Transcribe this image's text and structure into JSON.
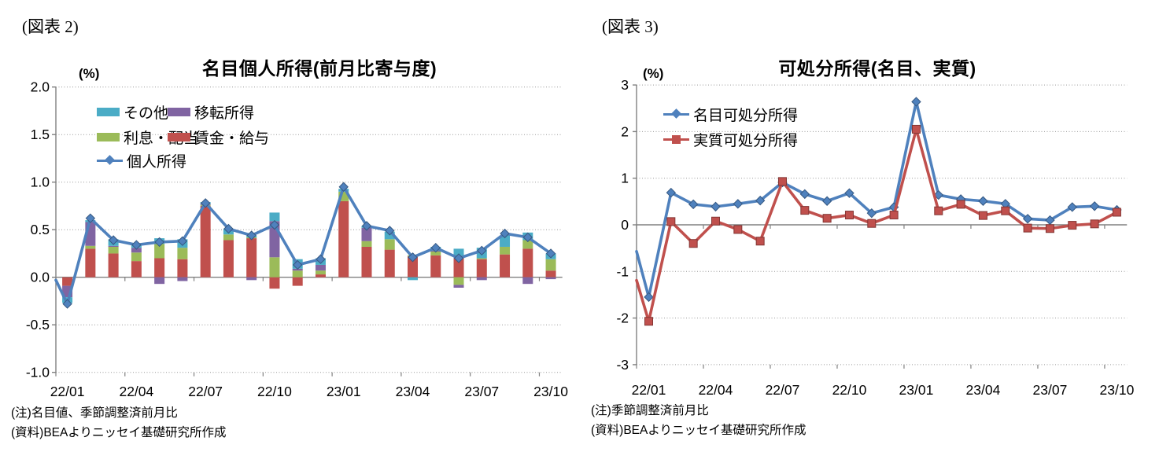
{
  "page_background": "#ffffff",
  "chart_data": [
    {
      "fig_label": "(図表 2)",
      "title": "名目個人所得(前月比寄与度)",
      "unit_label": "(%)",
      "type": "bar",
      "stacked": true,
      "grid": "horizontal-dotted",
      "legend_position": "inside-top-left",
      "xlabel": "",
      "ylabel": "%",
      "ylim": [
        -1.0,
        2.0
      ],
      "ytick_values": [
        2.0,
        1.5,
        1.0,
        0.5,
        0.0,
        -0.5,
        -1.0
      ],
      "ytick_labels": [
        "2.0",
        "1.5",
        "1.0",
        "0.5",
        "0.0",
        "-0.5",
        "-1.0"
      ],
      "categories": [
        "22/01",
        "22/02",
        "22/03",
        "22/04",
        "22/05",
        "22/06",
        "22/07",
        "22/08",
        "22/09",
        "22/10",
        "22/11",
        "22/12",
        "23/01",
        "23/02",
        "23/03",
        "23/04",
        "23/05",
        "23/06",
        "23/07",
        "23/08",
        "23/09",
        "23/10"
      ],
      "x_tick_labels": [
        "22/01",
        "22/04",
        "22/07",
        "22/10",
        "23/01",
        "23/04",
        "23/07",
        "23/10"
      ],
      "bar_series": [
        {
          "name": "賃金・給与",
          "color": "#C0504D",
          "values": [
            -0.09,
            0.3,
            0.25,
            0.17,
            0.2,
            0.19,
            0.75,
            0.39,
            0.41,
            -0.12,
            -0.09,
            0.03,
            0.8,
            0.32,
            0.29,
            0.22,
            0.23,
            0.2,
            0.19,
            0.24,
            0.3,
            0.07
          ]
        },
        {
          "name": "利息・配当",
          "color": "#9BBB59",
          "values": [
            0.0,
            0.03,
            0.07,
            0.09,
            0.15,
            0.12,
            0.01,
            0.06,
            0.01,
            0.21,
            0.07,
            0.04,
            0.1,
            0.06,
            0.11,
            0.01,
            0.04,
            -0.08,
            0.01,
            0.08,
            0.09,
            0.12
          ]
        },
        {
          "name": "移転所得",
          "color": "#8064A2",
          "values": [
            -0.12,
            0.25,
            0.01,
            0.05,
            -0.07,
            -0.04,
            0.01,
            0.0,
            -0.03,
            0.38,
            0.02,
            0.06,
            0.0,
            0.14,
            0.0,
            0.0,
            0.01,
            -0.03,
            -0.03,
            0.0,
            -0.07,
            -0.02
          ]
        },
        {
          "name": "その他",
          "color": "#4BACC6",
          "values": [
            -0.06,
            0.02,
            0.07,
            0.04,
            0.06,
            0.09,
            0.02,
            0.06,
            0.02,
            0.09,
            0.1,
            0.07,
            0.03,
            0.02,
            0.08,
            -0.03,
            0.04,
            0.1,
            0.11,
            0.12,
            0.08,
            0.06
          ]
        }
      ],
      "line_series": [
        {
          "name": "個人所得",
          "color": "#4F81BD",
          "marker_shape": "diamond",
          "left_edge_value": -0.03,
          "values": [
            -0.28,
            0.62,
            0.39,
            0.34,
            0.37,
            0.38,
            0.78,
            0.51,
            0.44,
            0.55,
            0.13,
            0.19,
            0.95,
            0.54,
            0.49,
            0.21,
            0.31,
            0.2,
            0.28,
            0.46,
            0.42,
            0.25
          ]
        }
      ],
      "legend": {
        "items": [
          {
            "label": "その他",
            "swatch": "rect",
            "color": "#4BACC6"
          },
          {
            "label": "移転所得",
            "swatch": "rect",
            "color": "#8064A2"
          },
          {
            "label": "利息・配当",
            "swatch": "rect",
            "color": "#9BBB59"
          },
          {
            "label": "賃金・給与",
            "swatch": "rect",
            "color": "#C0504D"
          },
          {
            "label": "個人所得",
            "swatch": "line-diamond",
            "color": "#4F81BD"
          }
        ]
      },
      "notes": [
        "(注)名目値、季節調整済前月比",
        "(資料)BEAよりニッセイ基礎研究所作成"
      ]
    },
    {
      "fig_label": "(図表 3)",
      "title": "可処分所得(名目、実質)",
      "unit_label": "(%)",
      "type": "line",
      "stacked": false,
      "grid": "horizontal-dotted",
      "legend_position": "inside-top-left",
      "xlabel": "",
      "ylabel": "%",
      "ylim": [
        -3,
        3
      ],
      "ytick_values": [
        3,
        2,
        1,
        0,
        -1,
        -2,
        -3
      ],
      "ytick_labels": [
        "3",
        "2",
        "1",
        "0",
        "-1",
        "-2",
        "-3"
      ],
      "categories": [
        "22/01",
        "22/02",
        "22/03",
        "22/04",
        "22/05",
        "22/06",
        "22/07",
        "22/08",
        "22/09",
        "22/10",
        "22/11",
        "22/12",
        "23/01",
        "23/02",
        "23/03",
        "23/04",
        "23/05",
        "23/06",
        "23/07",
        "23/08",
        "23/09",
        "23/10"
      ],
      "x_tick_labels": [
        "22/01",
        "22/04",
        "22/07",
        "22/10",
        "23/01",
        "23/04",
        "23/07",
        "23/10"
      ],
      "bar_series": [],
      "line_series": [
        {
          "name": "名目可処分所得",
          "color": "#4F81BD",
          "marker_shape": "diamond",
          "left_edge_value": -0.57,
          "values": [
            -1.55,
            0.69,
            0.44,
            0.39,
            0.45,
            0.52,
            0.91,
            0.66,
            0.51,
            0.68,
            0.25,
            0.38,
            2.64,
            0.64,
            0.55,
            0.51,
            0.45,
            0.13,
            0.1,
            0.38,
            0.4,
            0.32
          ]
        },
        {
          "name": "実質可処分所得",
          "color": "#C0504D",
          "marker_shape": "square",
          "left_edge_value": -1.19,
          "values": [
            -2.07,
            0.07,
            -0.4,
            0.08,
            -0.1,
            -0.35,
            0.93,
            0.31,
            0.14,
            0.21,
            0.03,
            0.21,
            2.05,
            0.3,
            0.44,
            0.2,
            0.3,
            -0.07,
            -0.08,
            -0.01,
            0.02,
            0.27
          ]
        }
      ],
      "legend": {
        "items": [
          {
            "label": "名目可処分所得",
            "swatch": "line-diamond",
            "color": "#4F81BD"
          },
          {
            "label": "実質可処分所得",
            "swatch": "line-square",
            "color": "#C0504D"
          }
        ]
      },
      "notes": [
        "(注)季節調整済前月比",
        "(資料)BEAよりニッセイ基礎研究所作成"
      ]
    }
  ]
}
